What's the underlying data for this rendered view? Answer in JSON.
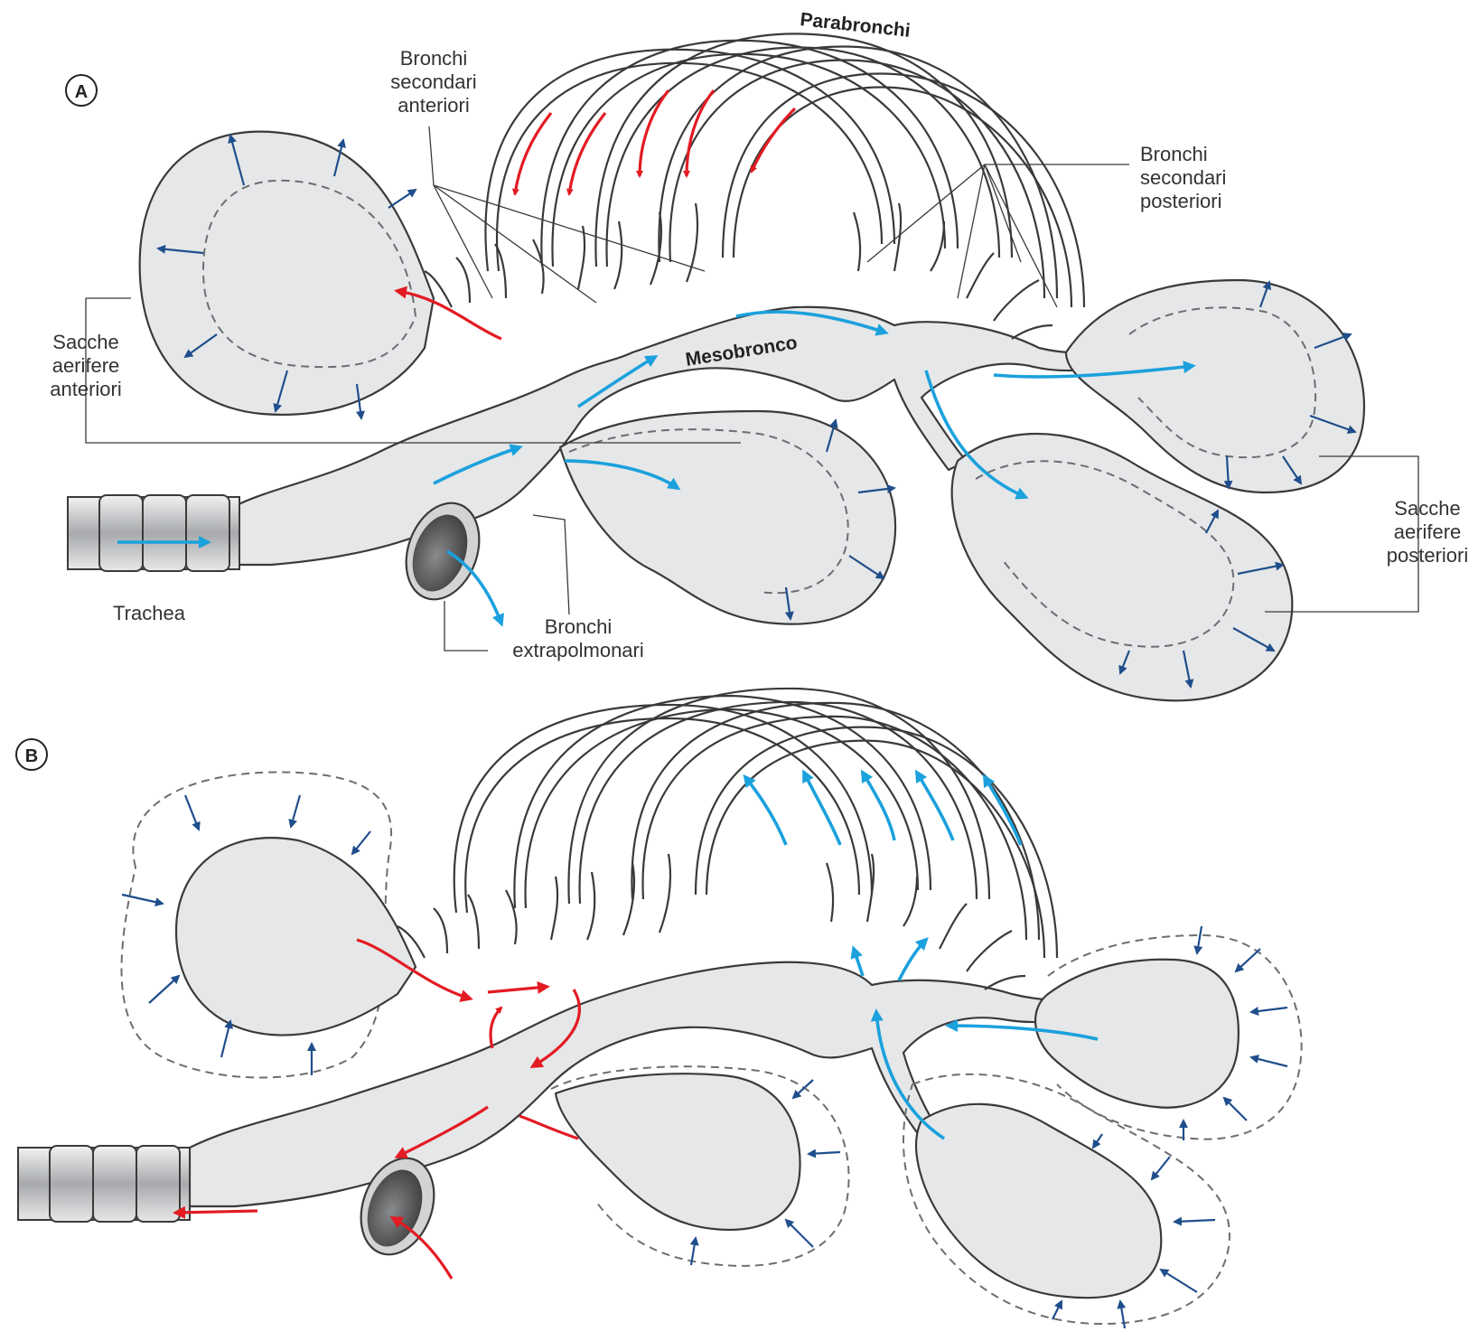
{
  "colors": {
    "expiration_flow": "#e31b23",
    "inspiration_flow": "#1ba1dd",
    "sac_motion": "#1f4e8c",
    "tissue": "#e6e7e8"
  },
  "panel_a": {
    "letter": "A",
    "labels": {
      "parabronchi": "Parabronchi",
      "bronchi_secondari_anteriori": [
        "Bronchi",
        "secondari",
        "anteriori"
      ],
      "bronchi_secondari_posteriori": [
        "Bronchi",
        "secondari",
        "posteriori"
      ],
      "sacche_aerifere_anteriori": [
        "Sacche",
        "aerifere",
        "anteriori"
      ],
      "sacche_aerifere_posteriori": [
        "Sacche",
        "aerifere",
        "posteriori"
      ],
      "mesobronco": "Mesobronco",
      "trachea": "Trachea",
      "bronchi_extrapolmonari": [
        "Bronchi",
        "extrapolmonari"
      ]
    }
  },
  "panel_b": {
    "letter": "B"
  }
}
